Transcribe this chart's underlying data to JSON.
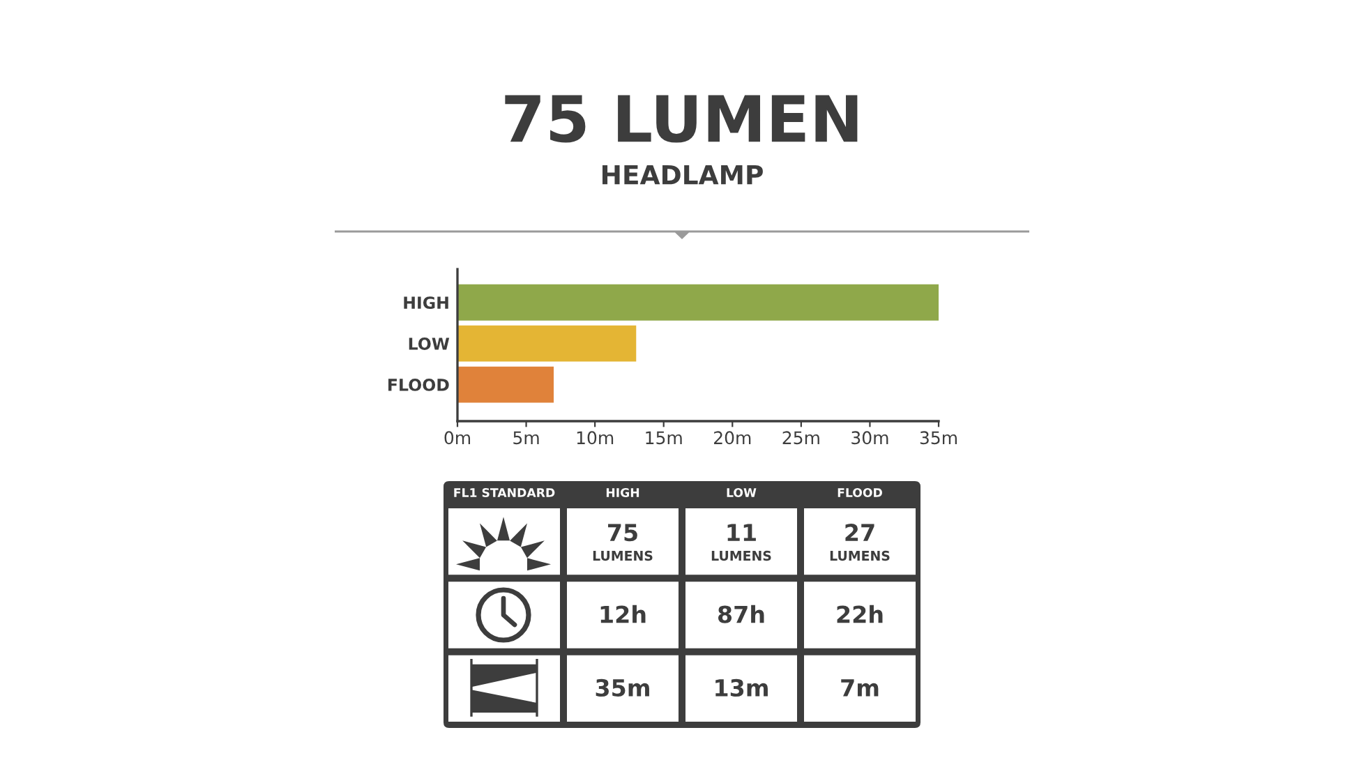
{
  "chart_data": [
    {
      "type": "bar",
      "title": "75 LUMEN",
      "subtitle": "HEADLAMP",
      "orientation": "horizontal",
      "categories": [
        "HIGH",
        "LOW",
        "FLOOD"
      ],
      "values": [
        35,
        13,
        7
      ],
      "colors": [
        "#8fa84a",
        "#e4b534",
        "#e0823a"
      ],
      "xlim": [
        0,
        35
      ],
      "xticks": [
        {
          "value": 0,
          "label": "0m"
        },
        {
          "value": 5,
          "label": "5m"
        },
        {
          "value": 10,
          "label": "10m"
        },
        {
          "value": 15,
          "label": "15m"
        },
        {
          "value": 20,
          "label": "20m"
        },
        {
          "value": 25,
          "label": "25m"
        },
        {
          "value": 30,
          "label": "30m"
        },
        {
          "value": 35,
          "label": "35m"
        }
      ]
    },
    {
      "type": "other",
      "title": "FL1 STANDARD",
      "categories": [
        "HIGH",
        "LOW",
        "FLOOD"
      ],
      "cell_labels": [
        [
          "75\nLUMENS",
          "11\nLUMENS",
          "27\nLUMENS"
        ],
        [
          "12h",
          "87h",
          "22h"
        ],
        [
          "35m",
          "13m",
          "7m"
        ]
      ]
    }
  ]
}
